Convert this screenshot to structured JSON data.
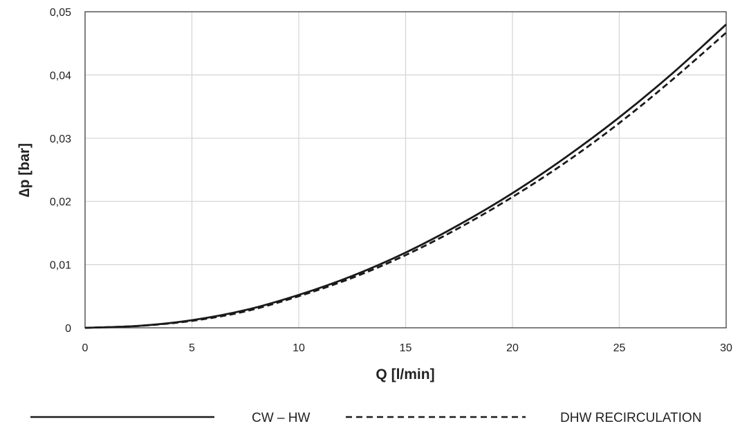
{
  "chart_data": {
    "type": "line",
    "xlabel": "Q [l/min]",
    "ylabel": "∆p [bar]",
    "xlim": [
      0,
      30
    ],
    "ylim": [
      0,
      0.05
    ],
    "x_ticks": [
      0,
      5,
      10,
      15,
      20,
      25,
      30
    ],
    "y_ticks": [
      0,
      0.01,
      0.02,
      0.03,
      0.04,
      0.05
    ],
    "x_tick_labels": [
      "0",
      "5",
      "10",
      "15",
      "20",
      "25",
      "30"
    ],
    "y_tick_labels": [
      "0",
      "0,01",
      "0,02",
      "0,03",
      "0,04",
      "0,05"
    ],
    "grid": true,
    "legend_position": "bottom",
    "x": [
      0,
      2.5,
      5,
      7.5,
      10,
      12.5,
      15,
      17.5,
      20,
      22.5,
      25,
      27.5,
      30
    ],
    "series": [
      {
        "name": "CW – HW",
        "style": "solid",
        "color": "#1a1a1a",
        "values": [
          0,
          0.0003,
          0.0012,
          0.0028,
          0.0052,
          0.0082,
          0.0119,
          0.0163,
          0.0213,
          0.027,
          0.0333,
          0.0403,
          0.048
        ]
      },
      {
        "name": "DHW RECIRCULATION",
        "style": "dashed",
        "color": "#1a1a1a",
        "values": [
          0,
          0.0003,
          0.0011,
          0.0026,
          0.005,
          0.0079,
          0.0115,
          0.0158,
          0.0207,
          0.0262,
          0.0324,
          0.0393,
          0.0467
        ]
      }
    ]
  }
}
